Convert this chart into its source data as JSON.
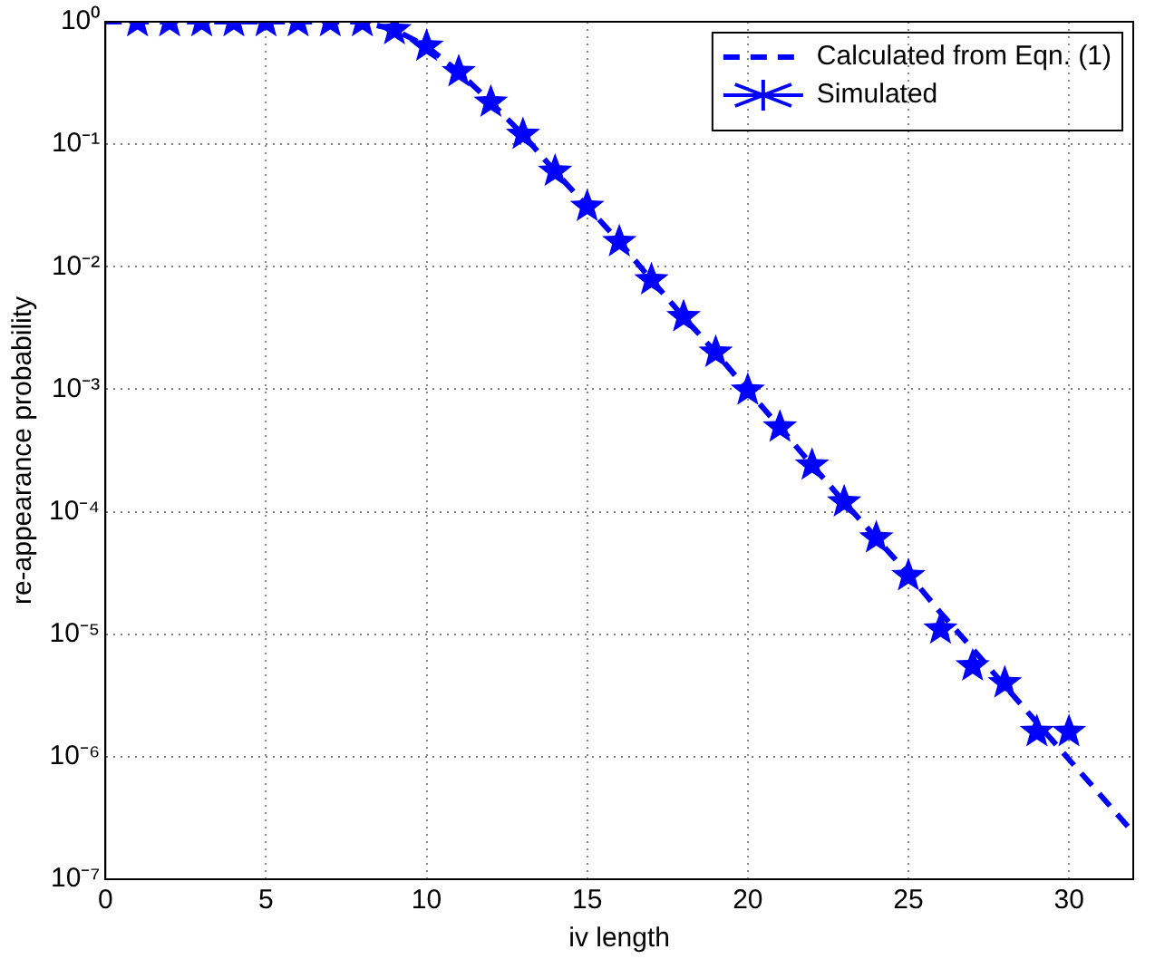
{
  "chart_data": {
    "type": "line",
    "xlabel": "iv length",
    "ylabel": "re-appearance probability",
    "log": "y",
    "grid": true,
    "legend": "top right",
    "xlim": [
      0,
      32
    ],
    "xticks": [
      0,
      5,
      10,
      15,
      20,
      25,
      30
    ],
    "ylim": [
      1e-07,
      1
    ],
    "yticks": [
      {
        "value": 1e-07,
        "label": "10⁻⁷"
      },
      {
        "value": 1e-06,
        "label": "10⁻⁶"
      },
      {
        "value": 1e-05,
        "label": "10⁻⁵"
      },
      {
        "value": 0.0001,
        "label": "10⁻⁴"
      },
      {
        "value": 0.001,
        "label": "10⁻³"
      },
      {
        "value": 0.01,
        "label": "10⁻²"
      },
      {
        "value": 0.1,
        "label": "10⁻¹"
      },
      {
        "value": 1,
        "label": "10⁰"
      }
    ],
    "series": [
      {
        "name": "Calculated from Eqn. (1)",
        "type": "line",
        "color": "#0000ff",
        "marker": "none",
        "line_style": "dashed",
        "x": [
          0,
          1,
          2,
          3,
          4,
          5,
          6,
          7,
          8,
          9,
          10,
          11,
          12,
          13,
          14,
          15,
          16,
          17,
          18,
          19,
          20,
          21,
          22,
          23,
          24,
          25,
          26,
          27,
          28,
          29,
          30,
          31,
          32
        ],
        "values": [
          1,
          1,
          1,
          1,
          1,
          1,
          1,
          1,
          1,
          0.86,
          0.63,
          0.39,
          0.22,
          0.12,
          0.06,
          0.031,
          0.016,
          0.0078,
          0.0039,
          0.002,
          0.00098,
          0.00049,
          0.00024,
          0.00012,
          6.1e-05,
          3.1e-05,
          1.5e-05,
          7.6e-06,
          3.8e-06,
          1.9e-06,
          9.5e-07,
          4.8e-07,
          2.4e-07
        ]
      },
      {
        "name": "Simulated",
        "type": "scatter",
        "color": "#0000ff",
        "marker": "star",
        "x": [
          1,
          2,
          3,
          4,
          5,
          6,
          7,
          8,
          9,
          10,
          11,
          12,
          13,
          14,
          15,
          16,
          17,
          18,
          19,
          20,
          21,
          22,
          23,
          24,
          25,
          26,
          27,
          28,
          29,
          30
        ],
        "values": [
          1,
          1,
          1,
          1,
          1,
          1,
          1,
          1,
          0.86,
          0.63,
          0.39,
          0.22,
          0.12,
          0.06,
          0.031,
          0.016,
          0.0078,
          0.0039,
          0.002,
          0.00098,
          0.00049,
          0.00024,
          0.00012,
          6.1e-05,
          3e-05,
          1.1e-05,
          5.5e-06,
          4e-06,
          1.6e-06,
          1.6e-06
        ]
      }
    ]
  }
}
